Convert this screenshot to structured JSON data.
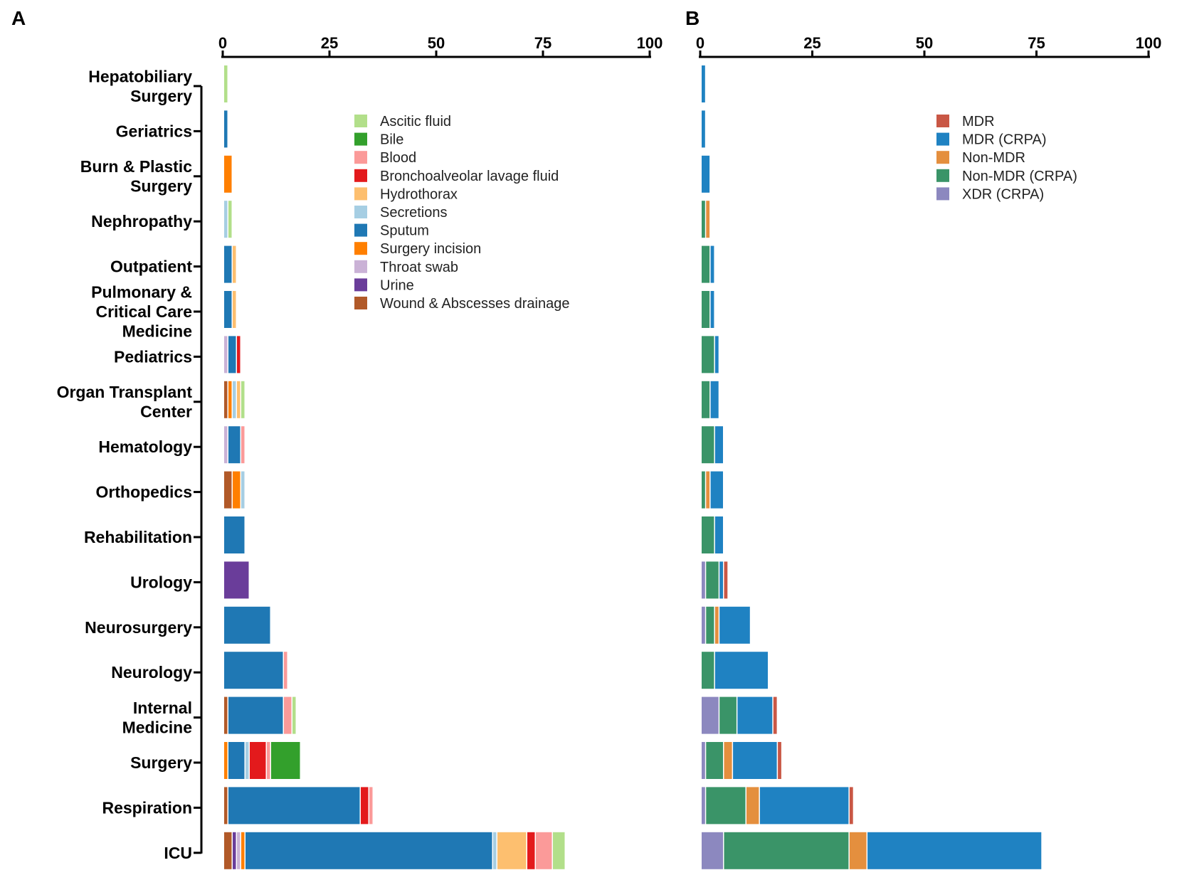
{
  "chart_data": [
    {
      "panel": "A",
      "type": "bar",
      "orientation": "horizontal-stacked",
      "xlim": [
        0,
        100
      ],
      "xticks": [
        0,
        25,
        50,
        75,
        100
      ],
      "categories": [
        [
          "Hepatobiliary",
          "Surgery"
        ],
        [
          "Geriatrics"
        ],
        [
          "Burn & Plastic",
          "Surgery"
        ],
        [
          "Nephropathy"
        ],
        [
          "Outpatient"
        ],
        [
          "Pulmonary &",
          "Critical Care",
          "Medicine"
        ],
        [
          "Pediatrics"
        ],
        [
          "Organ Transplant",
          "Center"
        ],
        [
          "Hematology"
        ],
        [
          "Orthopedics"
        ],
        [
          "Rehabilitation"
        ],
        [
          "Urology"
        ],
        [
          "Neurosurgery"
        ],
        [
          "Neurology"
        ],
        [
          "Internal",
          "Medicine"
        ],
        [
          "Surgery"
        ],
        [
          "Respiration"
        ],
        [
          "ICU"
        ]
      ],
      "legend_position": "top-center",
      "series": [
        {
          "name": "Wound & Abscesses drainage",
          "color": "#b15928",
          "values": [
            0,
            0,
            0,
            0,
            0,
            0,
            0,
            1,
            0,
            2,
            0,
            0,
            0,
            0,
            1,
            0,
            1,
            2
          ]
        },
        {
          "name": "Urine",
          "color": "#6a3d9a",
          "values": [
            0,
            0,
            0,
            0,
            0,
            0,
            0,
            0,
            0,
            0,
            0,
            6,
            0,
            0,
            0,
            0,
            0,
            1
          ]
        },
        {
          "name": "Throat swab",
          "color": "#cab2d6",
          "values": [
            0,
            0,
            0,
            0,
            0,
            0,
            1,
            0,
            1,
            0,
            0,
            0,
            0,
            0,
            0,
            0,
            0,
            1
          ]
        },
        {
          "name": "Surgery incision",
          "color": "#ff7f00",
          "values": [
            0,
            0,
            2,
            0,
            0,
            0,
            0,
            1,
            0,
            2,
            0,
            0,
            0,
            0,
            0,
            1,
            0,
            1
          ]
        },
        {
          "name": "Sputum",
          "color": "#1f78b4",
          "values": [
            0,
            1,
            0,
            0,
            2,
            2,
            2,
            0,
            3,
            0,
            5,
            0,
            11,
            14,
            13,
            4,
            31,
            58
          ]
        },
        {
          "name": "Secretions",
          "color": "#a6cee3",
          "values": [
            0,
            0,
            0,
            1,
            0,
            0,
            0,
            1,
            0,
            1,
            0,
            0,
            0,
            0,
            0,
            1,
            0,
            1
          ]
        },
        {
          "name": "Hydrothorax",
          "color": "#fdbf6f",
          "values": [
            0,
            0,
            0,
            0,
            1,
            1,
            0,
            1,
            0,
            0,
            0,
            0,
            0,
            0,
            0,
            0,
            0,
            7
          ]
        },
        {
          "name": "Bronchoalveolar lavage fluid",
          "color": "#e31a1c",
          "values": [
            0,
            0,
            0,
            0,
            0,
            0,
            1,
            0,
            0,
            0,
            0,
            0,
            0,
            0,
            0,
            4,
            2,
            2
          ]
        },
        {
          "name": "Blood",
          "color": "#fb9a99",
          "values": [
            0,
            0,
            0,
            0,
            0,
            0,
            0,
            0,
            1,
            0,
            0,
            0,
            0,
            1,
            2,
            1,
            1,
            4
          ]
        },
        {
          "name": "Bile",
          "color": "#33a02c",
          "values": [
            0,
            0,
            0,
            0,
            0,
            0,
            0,
            0,
            0,
            0,
            0,
            0,
            0,
            0,
            0,
            7,
            0,
            0
          ]
        },
        {
          "name": "Ascitic fluid",
          "color": "#b2df8a",
          "values": [
            1,
            0,
            0,
            1,
            0,
            0,
            0,
            1,
            0,
            0,
            0,
            0,
            0,
            0,
            1,
            0,
            0,
            3
          ]
        }
      ],
      "legend_order": [
        "Ascitic fluid",
        "Bile",
        "Blood",
        "Bronchoalveolar lavage fluid",
        "Hydrothorax",
        "Secretions",
        "Sputum",
        "Surgery incision",
        "Throat swab",
        "Urine",
        "Wound & Abscesses drainage"
      ]
    },
    {
      "panel": "B",
      "type": "bar",
      "orientation": "horizontal-stacked",
      "xlim": [
        0,
        100
      ],
      "xticks": [
        0,
        25,
        50,
        75,
        100
      ],
      "categories_shared_with": "A",
      "legend_position": "top-right",
      "series": [
        {
          "name": "XDR (CRPA)",
          "color": "#8c88bf",
          "values": [
            0,
            0,
            0,
            0,
            0,
            0,
            0,
            0,
            0,
            0,
            0,
            1,
            1,
            0,
            4,
            1,
            1,
            5
          ]
        },
        {
          "name": "Non-MDR (CRPA)",
          "color": "#3a9468",
          "values": [
            0,
            0,
            0,
            1,
            2,
            2,
            3,
            2,
            3,
            1,
            3,
            3,
            2,
            3,
            4,
            4,
            9,
            28
          ]
        },
        {
          "name": "Non-MDR",
          "color": "#e48f3e",
          "values": [
            0,
            0,
            0,
            1,
            0,
            0,
            0,
            0,
            0,
            1,
            0,
            0,
            1,
            0,
            0,
            2,
            3,
            4
          ]
        },
        {
          "name": "MDR (CRPA)",
          "color": "#1f82c2",
          "values": [
            1,
            1,
            2,
            0,
            1,
            1,
            1,
            2,
            2,
            3,
            2,
            1,
            7,
            12,
            8,
            10,
            20,
            39
          ]
        },
        {
          "name": "MDR",
          "color": "#c95745",
          "values": [
            0,
            0,
            0,
            0,
            0,
            0,
            0,
            0,
            0,
            0,
            0,
            1,
            0,
            0,
            1,
            1,
            1,
            0
          ]
        }
      ],
      "legend_order": [
        "MDR",
        "MDR (CRPA)",
        "Non-MDR",
        "Non-MDR (CRPA)",
        "XDR (CRPA)"
      ]
    }
  ]
}
